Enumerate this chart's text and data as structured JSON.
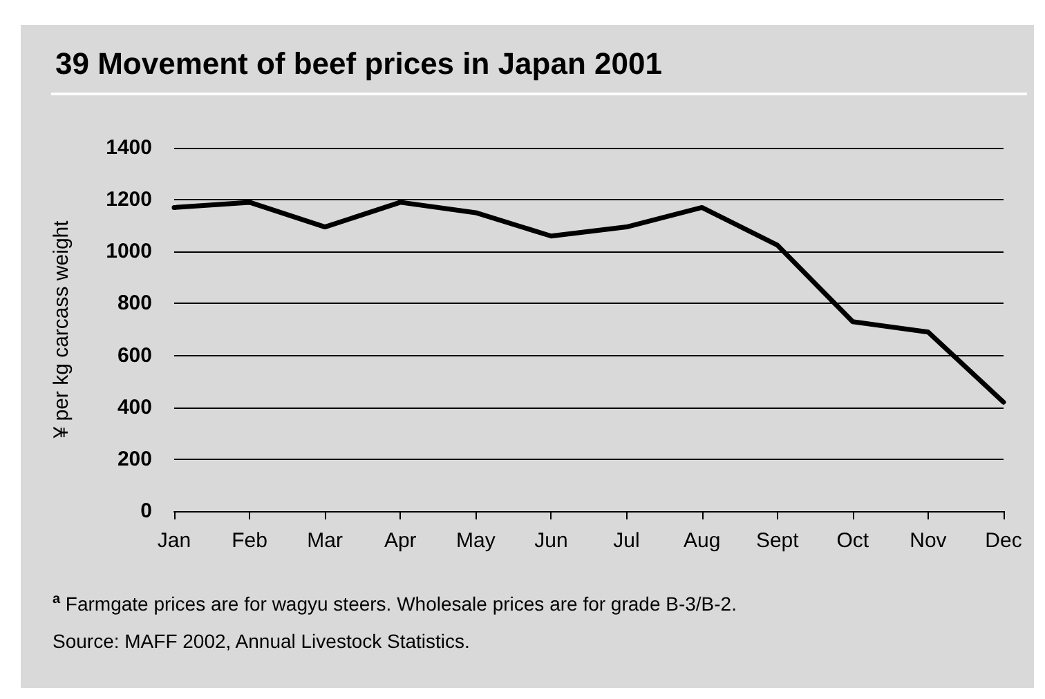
{
  "chart_data": {
    "type": "line",
    "title": "39 Movement of beef prices in Japan 2001",
    "ylabel": "¥ per kg carcass weight",
    "categories": [
      "Jan",
      "Feb",
      "Mar",
      "Apr",
      "May",
      "Jun",
      "Jul",
      "Aug",
      "Sept",
      "Oct",
      "Nov",
      "Dec"
    ],
    "values": [
      1170,
      1190,
      1095,
      1190,
      1150,
      1060,
      1095,
      1170,
      1025,
      730,
      690,
      420
    ],
    "color": "#000000",
    "ylim": [
      0,
      1400
    ],
    "yticks": [
      0,
      200,
      400,
      600,
      800,
      1000,
      1200,
      1400
    ],
    "grid": "y",
    "marker": "none",
    "line_style": "solid",
    "annotations": [
      "$^{a}$ Farmgate prices are for wagyu steers. Wholesale prices are for grade B-3/B-2.",
      "Source: MAFF 2002, Annual Livestock Statistics."
    ]
  }
}
